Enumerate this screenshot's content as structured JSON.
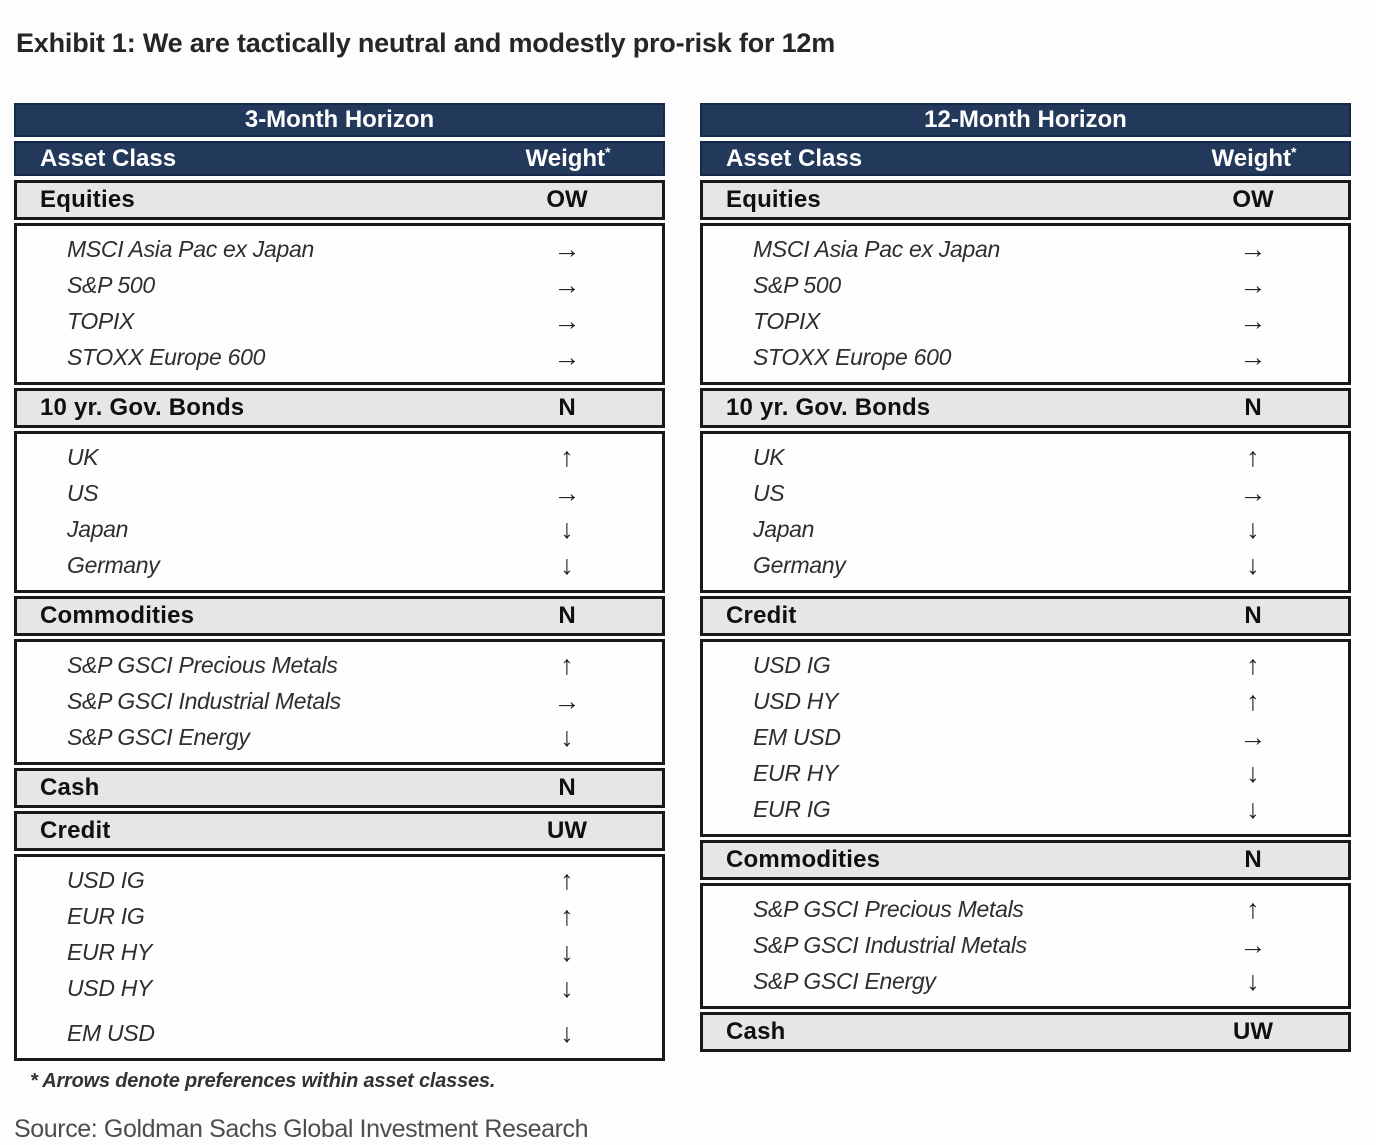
{
  "title": "Exhibit 1: We are tactically neutral and modestly pro-risk for 12m",
  "footnote": "* Arrows denote preferences within asset classes.",
  "source": "Source: Goldman Sachs Global Investment Research",
  "columns": {
    "asset_class": "Asset Class",
    "weight": "Weight",
    "weight_mark": "*"
  },
  "arrow_glyphs": {
    "up": "↑",
    "right": "→",
    "down": "↓"
  },
  "colors": {
    "header_navy": "#23395b",
    "section_gray": "#e6e6e6",
    "border_black": "#191919",
    "text_dark": "#262626"
  },
  "tables": [
    {
      "title": "3-Month Horizon",
      "sections": [
        {
          "label": "Equities",
          "weight": "OW",
          "items": [
            {
              "name": "MSCI Asia Pac ex Japan",
              "arrow": "right"
            },
            {
              "name": "S&P 500",
              "arrow": "right"
            },
            {
              "name": "TOPIX",
              "arrow": "right"
            },
            {
              "name": "STOXX Europe 600",
              "arrow": "right"
            }
          ]
        },
        {
          "label": "10 yr. Gov. Bonds",
          "weight": "N",
          "items": [
            {
              "name": "UK",
              "arrow": "up"
            },
            {
              "name": "US",
              "arrow": "right"
            },
            {
              "name": "Japan",
              "arrow": "down"
            },
            {
              "name": "Germany",
              "arrow": "down"
            }
          ]
        },
        {
          "label": "Commodities",
          "weight": "N",
          "items": [
            {
              "name": "S&P GSCI Precious Metals",
              "arrow": "up"
            },
            {
              "name": "S&P GSCI Industrial Metals",
              "arrow": "right"
            },
            {
              "name": "S&P GSCI Energy",
              "arrow": "down"
            }
          ]
        },
        {
          "label": "Cash",
          "weight": "N",
          "items": []
        },
        {
          "label": "Credit",
          "weight": "UW",
          "items": [
            {
              "name": "USD IG",
              "arrow": "up"
            },
            {
              "name": "EUR IG",
              "arrow": "up"
            },
            {
              "name": "EUR HY",
              "arrow": "down"
            },
            {
              "name": "USD HY",
              "arrow": "down"
            },
            {
              "name": "EM USD",
              "arrow": "down",
              "gap_before": true
            }
          ]
        }
      ]
    },
    {
      "title": "12-Month Horizon",
      "sections": [
        {
          "label": "Equities",
          "weight": "OW",
          "items": [
            {
              "name": "MSCI Asia Pac ex Japan",
              "arrow": "right"
            },
            {
              "name": "S&P 500",
              "arrow": "right"
            },
            {
              "name": "TOPIX",
              "arrow": "right"
            },
            {
              "name": "STOXX Europe 600",
              "arrow": "right"
            }
          ]
        },
        {
          "label": "10 yr. Gov. Bonds",
          "weight": "N",
          "items": [
            {
              "name": "UK",
              "arrow": "up"
            },
            {
              "name": "US",
              "arrow": "right"
            },
            {
              "name": "Japan",
              "arrow": "down"
            },
            {
              "name": "Germany",
              "arrow": "down"
            }
          ]
        },
        {
          "label": "Credit",
          "weight": "N",
          "items": [
            {
              "name": "USD IG",
              "arrow": "up"
            },
            {
              "name": "USD HY",
              "arrow": "up"
            },
            {
              "name": "EM USD",
              "arrow": "right"
            },
            {
              "name": "EUR HY",
              "arrow": "down"
            },
            {
              "name": "EUR IG",
              "arrow": "down"
            }
          ]
        },
        {
          "label": "Commodities",
          "weight": "N",
          "items": [
            {
              "name": "S&P GSCI Precious Metals",
              "arrow": "up"
            },
            {
              "name": "S&P GSCI Industrial Metals",
              "arrow": "right"
            },
            {
              "name": "S&P GSCI Energy",
              "arrow": "down"
            }
          ]
        },
        {
          "label": "Cash",
          "weight": "UW",
          "items": []
        }
      ]
    }
  ]
}
